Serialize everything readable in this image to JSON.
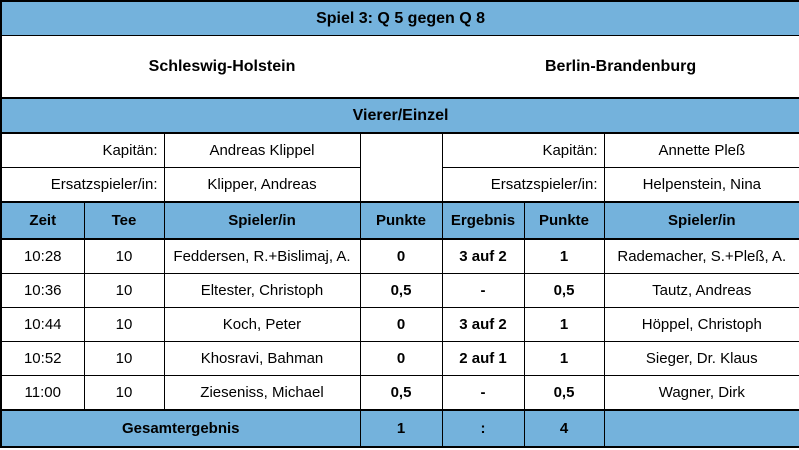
{
  "title": "Spiel 3:  Q 5 gegen Q 8",
  "team_left": "Schleswig-Holstein",
  "team_right": "Berlin-Brandenburg",
  "format": "Vierer/Einzel",
  "captain_label": "Kapitän:",
  "substitute_label": "Ersatzspieler/in:",
  "left_captain": "Andreas Klippel",
  "left_substitute": "Klipper, Andreas",
  "right_captain": "Annette Pleß",
  "right_substitute": "Helpenstein, Nina",
  "headers": {
    "time": "Zeit",
    "tee": "Tee",
    "player_left": "Spieler/in",
    "points_left": "Punkte",
    "result": "Ergebnis",
    "points_right": "Punkte",
    "player_right": "Spieler/in"
  },
  "matches": [
    {
      "time": "10:28",
      "tee": "10",
      "player_left": "Feddersen, R.+Bislimaj, A.",
      "points_left": "0",
      "result": "3 auf 2",
      "points_right": "1",
      "player_right": "Rademacher, S.+Pleß, A."
    },
    {
      "time": "10:36",
      "tee": "10",
      "player_left": "Eltester, Christoph",
      "points_left": "0,5",
      "result": "-",
      "points_right": "0,5",
      "player_right": "Tautz, Andreas"
    },
    {
      "time": "10:44",
      "tee": "10",
      "player_left": "Koch, Peter",
      "points_left": "0",
      "result": "3 auf 2",
      "points_right": "1",
      "player_right": "Höppel, Christoph"
    },
    {
      "time": "10:52",
      "tee": "10",
      "player_left": "Khosravi, Bahman",
      "points_left": "0",
      "result": "2 auf 1",
      "points_right": "1",
      "player_right": "Sieger, Dr. Klaus"
    },
    {
      "time": "11:00",
      "tee": "10",
      "player_left": "Zieseniss, Michael",
      "points_left": "0,5",
      "result": "-",
      "points_right": "0,5",
      "player_right": "Wagner, Dirk"
    }
  ],
  "total": {
    "label": "Gesamtergebnis",
    "left": "1",
    "separator": ":",
    "right": "4"
  },
  "colors": {
    "header_blue": "#74b2dc"
  }
}
